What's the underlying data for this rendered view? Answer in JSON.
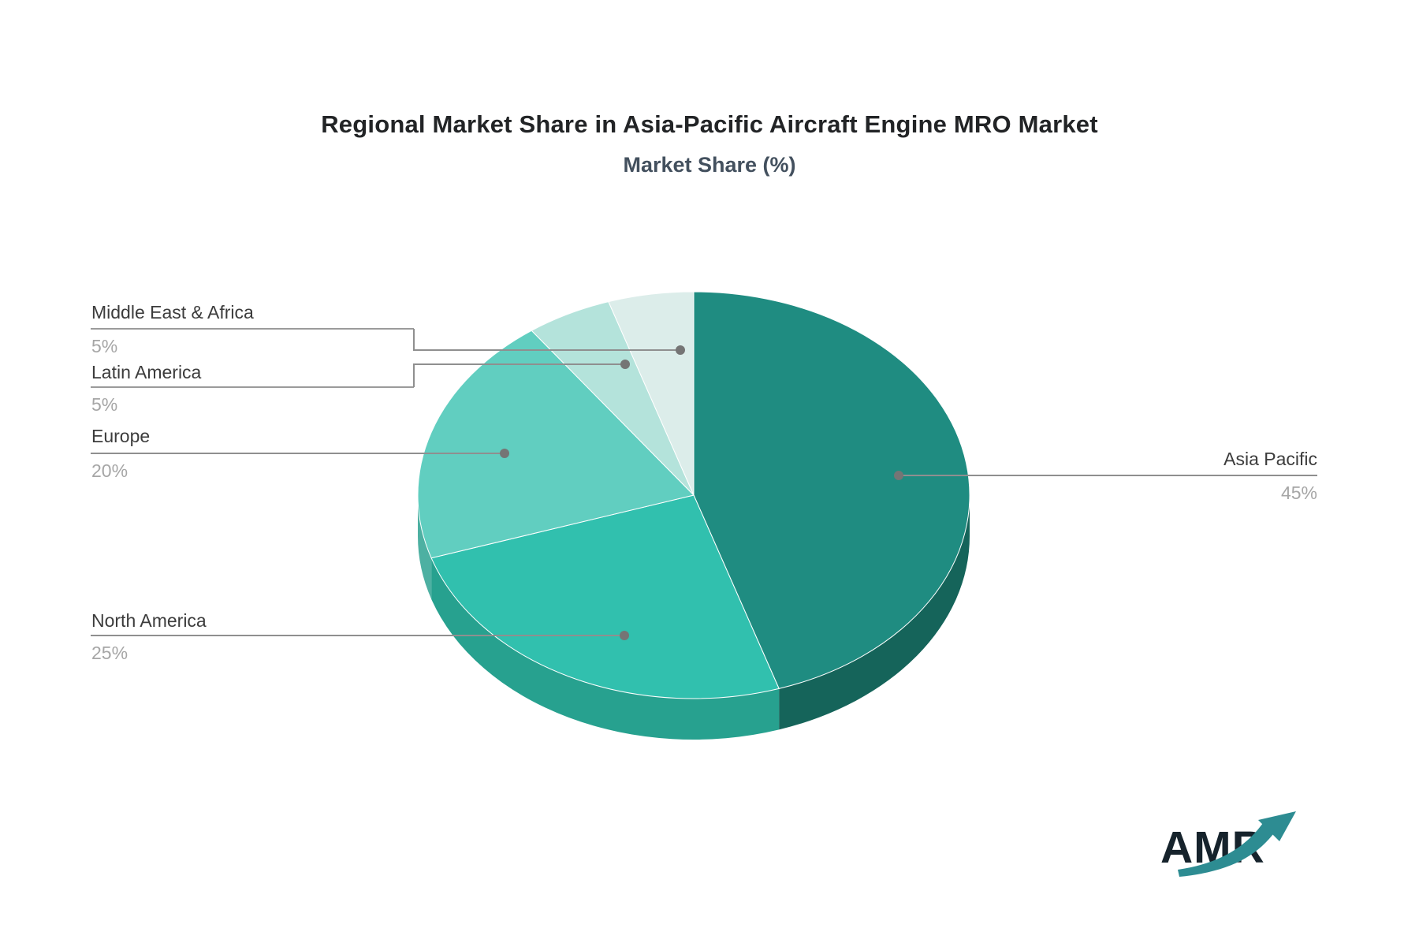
{
  "title": "Regional Market Share in Asia-Pacific Aircraft Engine MRO Market",
  "subtitle": "Market Share (%)",
  "logo": {
    "text": "AMR"
  },
  "chart_data": {
    "type": "pie",
    "style": "3d",
    "title": "Regional Market Share in Asia-Pacific Aircraft Engine MRO Market",
    "subtitle": "Market Share (%)",
    "unit": "%",
    "direction": "clockwise",
    "start_angle_deg": 0,
    "slices": [
      {
        "label": "Asia Pacific",
        "value": 45,
        "pct_label": "45%",
        "color": "#1f8c81",
        "rim_color": "#15645a"
      },
      {
        "label": "North America",
        "value": 25,
        "pct_label": "25%",
        "color": "#31c0ae",
        "rim_color": "#27a18f"
      },
      {
        "label": "Europe",
        "value": 20,
        "pct_label": "20%",
        "color": "#61cec0",
        "rim_color": "#4db0a2"
      },
      {
        "label": "Latin America",
        "value": 5,
        "pct_label": "5%",
        "color": "#b4e3db",
        "rim_color": "#9cccc4"
      },
      {
        "label": "Middle East & Africa",
        "value": 5,
        "pct_label": "5%",
        "color": "#dcedea",
        "rim_color": "#c4d8d5"
      }
    ],
    "leader_line_color": "#8f8f8f",
    "label_color": "#3c3c3c",
    "value_color": "#a6a6a6",
    "legend_position": "callout-labels",
    "grid": false
  },
  "logo_arrow_color": "#2d8c92"
}
